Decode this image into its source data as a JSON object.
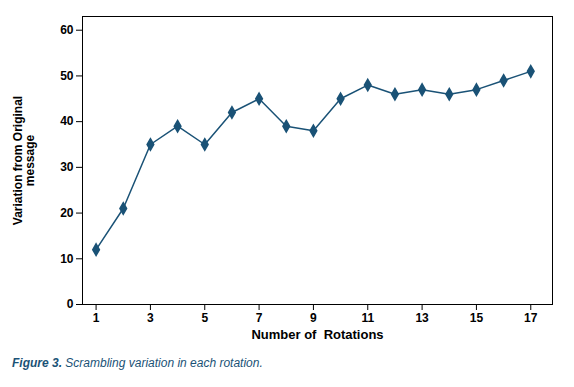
{
  "chart_data": {
    "type": "line",
    "x": [
      1,
      2,
      3,
      4,
      5,
      6,
      7,
      8,
      9,
      10,
      11,
      12,
      13,
      14,
      15,
      16,
      17
    ],
    "values": [
      12,
      21,
      35,
      39,
      35,
      42,
      45,
      39,
      38,
      45,
      48,
      46,
      47,
      46,
      47,
      49,
      51
    ],
    "color": "#1a5276",
    "marker": "diamond",
    "xlabel": "Number of  Rotations",
    "ylabel": "Variation from Original\nmessage",
    "caption": "Figure 3. Scrambling variation in each rotation.",
    "xlim": [
      0.5,
      17.8
    ],
    "ylim": [
      0,
      63
    ],
    "xticks": [
      1,
      3,
      5,
      7,
      9,
      11,
      13,
      15,
      17
    ],
    "yticks": [
      0,
      10,
      20,
      30,
      40,
      50,
      60
    ],
    "grid": false
  }
}
